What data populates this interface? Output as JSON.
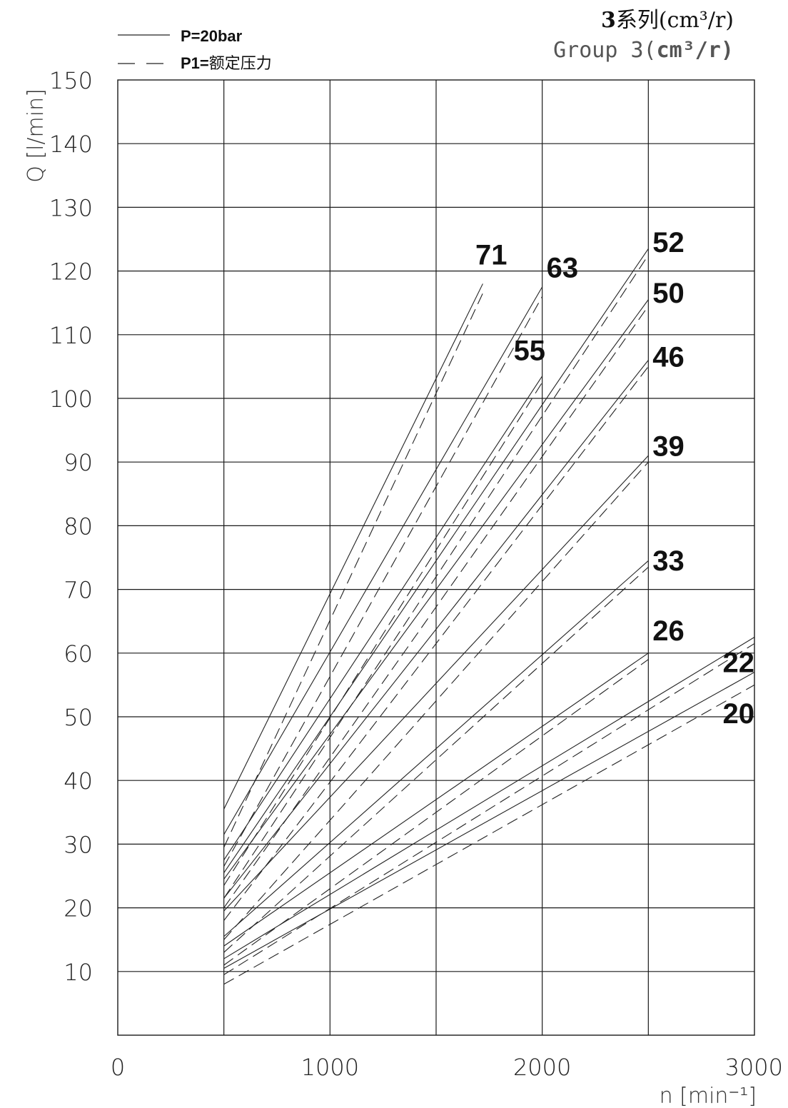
{
  "legend": {
    "solid_label": "P=20bar",
    "dashed_label_bold": "P1=",
    "dashed_label_cn": "额定压力"
  },
  "group_title": {
    "cn_bold": "3",
    "cn_rest": "系列(cm³/r)",
    "en_rest": "Group 3(",
    "en_bold": "cm³/r)"
  },
  "chart_data": {
    "type": "line",
    "title": "",
    "xlabel": "n [min⁻¹]",
    "ylabel": "Q [l/min]",
    "xlim": [
      0,
      3000
    ],
    "ylim": [
      0,
      150
    ],
    "xticks": [
      "0",
      "1000",
      "2000",
      "3000"
    ],
    "yticks": [
      "10",
      "20",
      "30",
      "40",
      "50",
      "60",
      "70",
      "80",
      "90",
      "100",
      "110",
      "120",
      "130",
      "140",
      "150"
    ],
    "grid": true,
    "legend_position": "top-left",
    "series": [
      {
        "name": "20",
        "solid": {
          "x": [
            500,
            3000
          ],
          "y": [
            10.5,
            57.0
          ]
        },
        "dashed": {
          "x": [
            500,
            3000
          ],
          "y": [
            8.0,
            55.0
          ]
        }
      },
      {
        "name": "22",
        "solid": {
          "x": [
            500,
            3000
          ],
          "y": [
            12.0,
            62.5
          ]
        },
        "dashed": {
          "x": [
            500,
            3000
          ],
          "y": [
            9.5,
            61.5
          ]
        }
      },
      {
        "name": "26",
        "solid": {
          "x": [
            500,
            2500
          ],
          "y": [
            14.0,
            60.0
          ]
        },
        "dashed": {
          "x": [
            500,
            2500
          ],
          "y": [
            11.0,
            59.0
          ]
        }
      },
      {
        "name": "33",
        "solid": {
          "x": [
            500,
            2500
          ],
          "y": [
            15.5,
            74.5
          ]
        },
        "dashed": {
          "x": [
            500,
            2500
          ],
          "y": [
            13.0,
            73.5
          ]
        }
      },
      {
        "name": "39",
        "solid": {
          "x": [
            500,
            2500
          ],
          "y": [
            19.5,
            91.0
          ]
        },
        "dashed": {
          "x": [
            500,
            2500
          ],
          "y": [
            15.0,
            90.0
          ]
        }
      },
      {
        "name": "46",
        "solid": {
          "x": [
            500,
            2500
          ],
          "y": [
            21.5,
            106.0
          ]
        },
        "dashed": {
          "x": [
            500,
            2500
          ],
          "y": [
            18.0,
            105.0
          ]
        }
      },
      {
        "name": "50",
        "solid": {
          "x": [
            500,
            2500
          ],
          "y": [
            24.5,
            115.5
          ]
        },
        "dashed": {
          "x": [
            500,
            2500
          ],
          "y": [
            20.0,
            114.5
          ]
        }
      },
      {
        "name": "52",
        "solid": {
          "x": [
            500,
            2500
          ],
          "y": [
            25.5,
            123.5
          ]
        },
        "dashed": {
          "x": [
            500,
            2500
          ],
          "y": [
            21.5,
            122.5
          ]
        }
      },
      {
        "name": "55",
        "solid": {
          "x": [
            500,
            2000
          ],
          "y": [
            27.5,
            103.5
          ]
        },
        "dashed": {
          "x": [
            500,
            2000
          ],
          "y": [
            23.5,
            102.5
          ]
        }
      },
      {
        "name": "63",
        "solid": {
          "x": [
            500,
            2000
          ],
          "y": [
            31.5,
            117.5
          ]
        },
        "dashed": {
          "x": [
            500,
            2000
          ],
          "y": [
            26.5,
            116.0
          ]
        }
      },
      {
        "name": "71",
        "solid": {
          "x": [
            500,
            1720
          ],
          "y": [
            35.5,
            118.0
          ]
        },
        "dashed": {
          "x": [
            500,
            1720
          ],
          "y": [
            29.5,
            116.5
          ]
        }
      }
    ]
  }
}
